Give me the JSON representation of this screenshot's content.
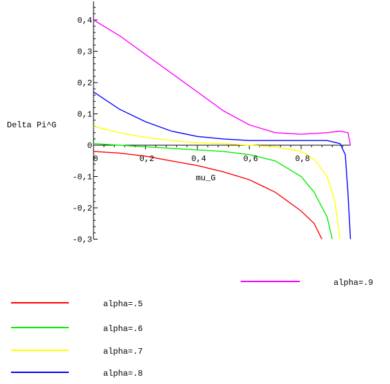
{
  "chart_data": {
    "type": "line",
    "title": "",
    "xlabel": "mu_G",
    "ylabel": "Delta Pi^G",
    "xlim": [
      0,
      0.99
    ],
    "ylim": [
      -0.3,
      0.45
    ],
    "x_ticks": [
      {
        "value": 0,
        "label": "0"
      },
      {
        "value": 0.2,
        "label": "0,2"
      },
      {
        "value": 0.4,
        "label": "0,4"
      },
      {
        "value": 0.6,
        "label": "0,6"
      },
      {
        "value": 0.8,
        "label": "0,8"
      }
    ],
    "y_ticks": [
      {
        "value": 0.4,
        "label": "0,4"
      },
      {
        "value": 0.3,
        "label": "0,3"
      },
      {
        "value": 0.2,
        "label": "0,2"
      },
      {
        "value": 0.1,
        "label": "0,1"
      },
      {
        "value": 0,
        "label": "0"
      },
      {
        "value": -0.1,
        "label": "-0,1"
      },
      {
        "value": -0.2,
        "label": "-0,2"
      },
      {
        "value": -0.3,
        "label": "-0,3"
      }
    ],
    "series": [
      {
        "name": "alpha=.5",
        "color": "#ff0000",
        "x": [
          0,
          0.1,
          0.2,
          0.3,
          0.4,
          0.5,
          0.6,
          0.7,
          0.75,
          0.8,
          0.85,
          0.88
        ],
        "y": [
          -0.02,
          -0.025,
          -0.035,
          -0.05,
          -0.065,
          -0.085,
          -0.11,
          -0.15,
          -0.18,
          -0.21,
          -0.25,
          -0.3
        ]
      },
      {
        "name": "alpha=.6",
        "color": "#00ee00",
        "x": [
          0,
          0.1,
          0.2,
          0.3,
          0.4,
          0.5,
          0.6,
          0.7,
          0.8,
          0.85,
          0.9,
          0.92
        ],
        "y": [
          0.005,
          0,
          -0.005,
          -0.01,
          -0.015,
          -0.02,
          -0.03,
          -0.05,
          -0.1,
          -0.15,
          -0.23,
          -0.3
        ]
      },
      {
        "name": "alpha=.7",
        "color": "#ffff00",
        "x": [
          0,
          0.1,
          0.2,
          0.3,
          0.4,
          0.5,
          0.6,
          0.7,
          0.8,
          0.85,
          0.9,
          0.93,
          0.95
        ],
        "y": [
          0.06,
          0.04,
          0.025,
          0.015,
          0.008,
          0.005,
          0,
          -0.005,
          -0.02,
          -0.045,
          -0.1,
          -0.18,
          -0.3
        ]
      },
      {
        "name": "alpha=.8",
        "color": "#0000ff",
        "x": [
          0,
          0.1,
          0.2,
          0.3,
          0.4,
          0.5,
          0.6,
          0.7,
          0.8,
          0.9,
          0.95,
          0.97,
          0.98,
          0.99
        ],
        "y": [
          0.17,
          0.115,
          0.075,
          0.045,
          0.028,
          0.02,
          0.015,
          0.015,
          0.015,
          0.015,
          0.005,
          -0.03,
          -0.15,
          -0.3
        ]
      },
      {
        "name": "alpha=.9",
        "color": "#ff00ff",
        "x": [
          0,
          0.1,
          0.2,
          0.3,
          0.4,
          0.5,
          0.6,
          0.7,
          0.8,
          0.9,
          0.95,
          0.98,
          0.99
        ],
        "y": [
          0.4,
          0.35,
          0.29,
          0.23,
          0.17,
          0.11,
          0.065,
          0.04,
          0.035,
          0.04,
          0.045,
          0.04,
          0
        ]
      }
    ],
    "grid": false,
    "legend_position": "bottom"
  }
}
